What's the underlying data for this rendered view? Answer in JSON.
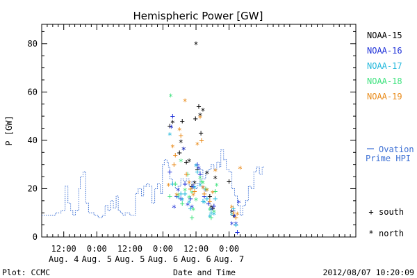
{
  "chart_data": {
    "type": "scatter",
    "title": "Hemispheric Power [GW]",
    "ylabel": "P [GW]",
    "xlabel": "Date and Time",
    "ylim": [
      0,
      88
    ],
    "yticks": [
      0,
      20,
      40,
      60,
      80
    ],
    "xrange_hours": [
      -8,
      106
    ],
    "xticks": [
      {
        "hour": 0,
        "time": "12:00",
        "date": "Aug. 4"
      },
      {
        "hour": 12,
        "time": "0:00",
        "date": "Aug. 5"
      },
      {
        "hour": 24,
        "time": "12:00",
        "date": "Aug. 5"
      },
      {
        "hour": 36,
        "time": "0:00",
        "date": "Aug. 6"
      },
      {
        "hour": 48,
        "time": "12:00",
        "date": "Aug. 6"
      },
      {
        "hour": 60,
        "time": "0:00",
        "date": "Aug. 7"
      }
    ],
    "ovation": {
      "name": "Ovation Prime HPI",
      "label_lines": [
        "Ovation",
        "Prime HPI"
      ],
      "color": "#3b6fd4",
      "steps": [
        [
          -8,
          9
        ],
        [
          -3,
          9
        ],
        [
          -3,
          10
        ],
        [
          -1,
          10
        ],
        [
          -1,
          11
        ],
        [
          0.5,
          11
        ],
        [
          0.5,
          21
        ],
        [
          1.5,
          21
        ],
        [
          1.5,
          14
        ],
        [
          2.5,
          14
        ],
        [
          2.5,
          11
        ],
        [
          3.3,
          11
        ],
        [
          3.3,
          9
        ],
        [
          4.2,
          9
        ],
        [
          4.2,
          11
        ],
        [
          5.5,
          11
        ],
        [
          5.5,
          20
        ],
        [
          6,
          20
        ],
        [
          6,
          25
        ],
        [
          7,
          25
        ],
        [
          7,
          27
        ],
        [
          8,
          27
        ],
        [
          8,
          14
        ],
        [
          9,
          14
        ],
        [
          9,
          10
        ],
        [
          11,
          10
        ],
        [
          11,
          9
        ],
        [
          12.5,
          9
        ],
        [
          12.5,
          8
        ],
        [
          14,
          8
        ],
        [
          14,
          9
        ],
        [
          15,
          9
        ],
        [
          15,
          13
        ],
        [
          16,
          13
        ],
        [
          16,
          11
        ],
        [
          17,
          11
        ],
        [
          17,
          15
        ],
        [
          18,
          15
        ],
        [
          18,
          12
        ],
        [
          19,
          12
        ],
        [
          19,
          17
        ],
        [
          19.8,
          17
        ],
        [
          19.8,
          11
        ],
        [
          20.6,
          11
        ],
        [
          20.6,
          10
        ],
        [
          21.4,
          10
        ],
        [
          21.4,
          9
        ],
        [
          22.3,
          9
        ],
        [
          22.3,
          10
        ],
        [
          24,
          10
        ],
        [
          24,
          9
        ],
        [
          26,
          9
        ],
        [
          26,
          18
        ],
        [
          27,
          18
        ],
        [
          27,
          20
        ],
        [
          28.2,
          20
        ],
        [
          28.2,
          17
        ],
        [
          29,
          17
        ],
        [
          29,
          21
        ],
        [
          30,
          21
        ],
        [
          30,
          22
        ],
        [
          31,
          22
        ],
        [
          31,
          21
        ],
        [
          32,
          21
        ],
        [
          32,
          14
        ],
        [
          33,
          14
        ],
        [
          33,
          20
        ],
        [
          34,
          20
        ],
        [
          34,
          22
        ],
        [
          35,
          22
        ],
        [
          35,
          18
        ],
        [
          35.8,
          18
        ],
        [
          35.8,
          30
        ],
        [
          36.5,
          30
        ],
        [
          36.5,
          32
        ],
        [
          37.5,
          32
        ],
        [
          37.5,
          31
        ],
        [
          38,
          31
        ],
        [
          38,
          29
        ],
        [
          38.5,
          29
        ],
        [
          38.5,
          24
        ],
        [
          39.5,
          24
        ],
        [
          39.5,
          22
        ],
        [
          40.5,
          22
        ],
        [
          40.5,
          20
        ],
        [
          41.5,
          20
        ],
        [
          41.5,
          21
        ],
        [
          42.5,
          21
        ],
        [
          42.5,
          24
        ],
        [
          43.5,
          24
        ],
        [
          43.5,
          23
        ],
        [
          44.5,
          23
        ],
        [
          44.5,
          24
        ],
        [
          45.5,
          24
        ],
        [
          45.5,
          21
        ],
        [
          46.5,
          21
        ],
        [
          46.5,
          23
        ],
        [
          47.5,
          23
        ],
        [
          47.5,
          20
        ],
        [
          48.5,
          20
        ],
        [
          48.5,
          22
        ],
        [
          49.5,
          22
        ],
        [
          49.5,
          28
        ],
        [
          50.5,
          28
        ],
        [
          50.5,
          24
        ],
        [
          51.5,
          24
        ],
        [
          51.5,
          27
        ],
        [
          52.5,
          27
        ],
        [
          52.5,
          28
        ],
        [
          53.5,
          28
        ],
        [
          53.5,
          30
        ],
        [
          54.5,
          30
        ],
        [
          54.5,
          28
        ],
        [
          55.5,
          28
        ],
        [
          55.5,
          31
        ],
        [
          56.5,
          31
        ],
        [
          56.5,
          29
        ],
        [
          57,
          29
        ],
        [
          57,
          36
        ],
        [
          58,
          36
        ],
        [
          58,
          32
        ],
        [
          59,
          32
        ],
        [
          59,
          28
        ],
        [
          60,
          28
        ],
        [
          60,
          27
        ],
        [
          61,
          27
        ],
        [
          61,
          20
        ],
        [
          62,
          20
        ],
        [
          62,
          17
        ],
        [
          63,
          17
        ],
        [
          63,
          13
        ],
        [
          64,
          13
        ],
        [
          64,
          9
        ],
        [
          65,
          9
        ],
        [
          65,
          13
        ],
        [
          66,
          13
        ],
        [
          66,
          15
        ],
        [
          67,
          15
        ],
        [
          67,
          21
        ],
        [
          68,
          21
        ],
        [
          68,
          20
        ],
        [
          69,
          20
        ],
        [
          69,
          27
        ],
        [
          70,
          27
        ],
        [
          70,
          29
        ],
        [
          71,
          29
        ],
        [
          71,
          26
        ],
        [
          72,
          26
        ],
        [
          72,
          29
        ],
        [
          73,
          29
        ]
      ]
    },
    "series": [
      {
        "name": "NOAA-15",
        "color": "#000000",
        "points": [
          [
            38.5,
            46,
            "+"
          ],
          [
            39.5,
            47,
            "*"
          ],
          [
            42,
            35,
            "+"
          ],
          [
            42.5,
            39,
            "*"
          ],
          [
            43,
            48,
            "+"
          ],
          [
            43.5,
            36,
            "*"
          ],
          [
            44.5,
            31,
            "+"
          ],
          [
            45.5,
            31,
            "*"
          ],
          [
            46.5,
            21,
            "+"
          ],
          [
            47.5,
            22,
            "*"
          ],
          [
            47.8,
            49,
            "+"
          ],
          [
            48,
            79.5,
            "*"
          ],
          [
            48.5,
            28,
            "+"
          ],
          [
            49,
            54,
            "+"
          ],
          [
            49.5,
            50,
            "*"
          ],
          [
            49.8,
            43,
            "+"
          ],
          [
            50.5,
            52,
            "*"
          ],
          [
            51,
            18,
            "+"
          ],
          [
            52,
            26,
            "*"
          ],
          [
            53,
            17,
            "+"
          ],
          [
            53.5,
            12,
            "*"
          ],
          [
            54,
            12,
            "+"
          ],
          [
            55,
            24,
            "*"
          ],
          [
            60,
            23,
            "+"
          ],
          [
            61,
            10,
            "*"
          ],
          [
            61.5,
            9,
            "+"
          ],
          [
            62.5,
            5,
            "+"
          ]
        ]
      },
      {
        "name": "NOAA-16",
        "color": "#1c2fd8",
        "points": [
          [
            38.5,
            27,
            "+"
          ],
          [
            39,
            45,
            "*"
          ],
          [
            39.5,
            50,
            "+"
          ],
          [
            40,
            12,
            "*"
          ],
          [
            41,
            17,
            "+"
          ],
          [
            41.5,
            19,
            "*"
          ],
          [
            42.5,
            16,
            "+"
          ],
          [
            43.5,
            36,
            "*"
          ],
          [
            44,
            22,
            "+"
          ],
          [
            45,
            13,
            "*"
          ],
          [
            46,
            16,
            "+"
          ],
          [
            46.5,
            12,
            "*"
          ],
          [
            47,
            21,
            "+"
          ],
          [
            48.5,
            30,
            "+"
          ],
          [
            49,
            28,
            "*"
          ],
          [
            49.5,
            26,
            "+"
          ],
          [
            50.5,
            20,
            "*"
          ],
          [
            51,
            17,
            "+"
          ],
          [
            51.5,
            19,
            "*"
          ],
          [
            52.5,
            14,
            "+"
          ],
          [
            53.5,
            11,
            "*"
          ],
          [
            54.5,
            13,
            "+"
          ],
          [
            61,
            5,
            "*"
          ],
          [
            61.5,
            11,
            "+"
          ],
          [
            62,
            8,
            "*"
          ],
          [
            62.5,
            5,
            "*"
          ],
          [
            63,
            2,
            "+"
          ],
          [
            63.5,
            14,
            "*"
          ]
        ]
      },
      {
        "name": "NOAA-17",
        "color": "#22b8dc",
        "points": [
          [
            38.5,
            42,
            "*"
          ],
          [
            39.5,
            22,
            "+"
          ],
          [
            41.5,
            16,
            "*"
          ],
          [
            42.5,
            18,
            "+"
          ],
          [
            43,
            15,
            "*"
          ],
          [
            44,
            18,
            "+"
          ],
          [
            45.5,
            14,
            "*"
          ],
          [
            46,
            12,
            "+"
          ],
          [
            47.5,
            20,
            "*"
          ],
          [
            48,
            29,
            "*"
          ],
          [
            48.5,
            27,
            "+"
          ],
          [
            49.5,
            21,
            "*"
          ],
          [
            50.5,
            15,
            "+"
          ],
          [
            51,
            14,
            "*"
          ],
          [
            52,
            16,
            "+"
          ],
          [
            53,
            8,
            "*"
          ],
          [
            53.5,
            10,
            "+"
          ],
          [
            54.5,
            9,
            "*"
          ],
          [
            55,
            16,
            "+"
          ],
          [
            61,
            9,
            "*"
          ],
          [
            61.5,
            12,
            "+"
          ],
          [
            62.5,
            5,
            "+"
          ]
        ]
      },
      {
        "name": "NOAA-18",
        "color": "#3ee27e",
        "points": [
          [
            38.8,
            58,
            "*"
          ],
          [
            38.5,
            17,
            "+"
          ],
          [
            40.5,
            22,
            "+"
          ],
          [
            41.5,
            17,
            "*"
          ],
          [
            42.5,
            31,
            "*"
          ],
          [
            43,
            14,
            "+"
          ],
          [
            44,
            19,
            "*"
          ],
          [
            45,
            26,
            "+"
          ],
          [
            45.5,
            16,
            "*"
          ],
          [
            46.5,
            18,
            "*"
          ],
          [
            47,
            11,
            "*"
          ],
          [
            46.5,
            8,
            "+"
          ],
          [
            48,
            15,
            "*"
          ],
          [
            49.5,
            24,
            "*"
          ],
          [
            50,
            23,
            "+"
          ],
          [
            50.5,
            22,
            "*"
          ],
          [
            51.5,
            20,
            "+"
          ],
          [
            52,
            19,
            "*"
          ],
          [
            53,
            11,
            "*"
          ],
          [
            53.5,
            8,
            "+"
          ],
          [
            54.5,
            10,
            "*"
          ],
          [
            55,
            19,
            "+"
          ],
          [
            55.5,
            21,
            "*"
          ]
        ]
      },
      {
        "name": "NOAA-19",
        "color": "#e98a18",
        "points": [
          [
            38,
            21,
            "*"
          ],
          [
            39.5,
            37,
            "*"
          ],
          [
            40,
            30,
            "+"
          ],
          [
            40.5,
            34,
            "+"
          ],
          [
            41,
            17,
            "*"
          ],
          [
            42,
            44,
            "*"
          ],
          [
            42.5,
            42,
            "+"
          ],
          [
            44,
            56,
            "*"
          ],
          [
            44.5,
            26,
            "+"
          ],
          [
            45.5,
            22,
            "*"
          ],
          [
            46,
            20,
            "+"
          ],
          [
            47,
            17,
            "*"
          ],
          [
            47.5,
            19,
            "+"
          ],
          [
            48.5,
            38,
            "*"
          ],
          [
            49.5,
            49,
            "*"
          ],
          [
            50,
            40,
            "+"
          ],
          [
            50.5,
            20,
            "*"
          ],
          [
            51,
            18,
            "+"
          ],
          [
            52,
            19,
            "*"
          ],
          [
            53,
            15,
            "+"
          ],
          [
            54,
            18,
            "*"
          ],
          [
            55,
            27,
            "*"
          ],
          [
            61,
            12,
            "*"
          ],
          [
            61.5,
            10,
            "+"
          ],
          [
            62.5,
            8,
            "+"
          ],
          [
            63,
            9,
            "*"
          ],
          [
            64,
            28,
            "*"
          ]
        ]
      }
    ],
    "marker_legend": [
      {
        "symbol": "+",
        "label": "south"
      },
      {
        "symbol": "*",
        "label": "north"
      }
    ],
    "footer_left": "Plot: CCMC",
    "footer_right": "2012/08/07 10:20:09"
  }
}
